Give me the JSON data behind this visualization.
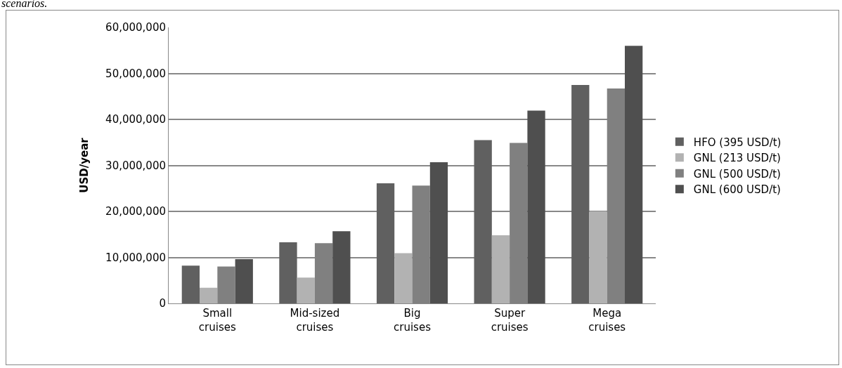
{
  "chart_data": {
    "type": "bar",
    "ylabel": "USD/year",
    "annotations": [
      "scenarios."
    ],
    "categories": [
      "Small cruises",
      "Mid-sized cruises",
      "Big cruises",
      "Super cruises",
      "Mega cruises"
    ],
    "series": [
      {
        "name": "HFO (395 USD/t)",
        "color": "#606060",
        "values": [
          8200000,
          13300000,
          26100000,
          35500000,
          47500000
        ]
      },
      {
        "name": "GNL (213 USD/t)",
        "color": "#b2b2b2",
        "values": [
          3400000,
          5600000,
          10900000,
          14800000,
          20000000
        ]
      },
      {
        "name": "GNL (500 USD/t)",
        "color": "#808080",
        "values": [
          8000000,
          13100000,
          25600000,
          34900000,
          46700000
        ]
      },
      {
        "name": "GNL (600 USD/t)",
        "color": "#4f4f4f",
        "values": [
          9600000,
          15700000,
          30700000,
          41900000,
          56000000
        ]
      }
    ],
    "ylim": [
      0,
      60000000
    ],
    "yticks": [
      {
        "value": 0,
        "label": "0"
      },
      {
        "value": 10000000,
        "label": "10,000,000"
      },
      {
        "value": 20000000,
        "label": "20,000,000"
      },
      {
        "value": 30000000,
        "label": "30,000,000"
      },
      {
        "value": 40000000,
        "label": "40,000,000"
      },
      {
        "value": 50000000,
        "label": "50,000,000"
      },
      {
        "value": 60000000,
        "label": "60,000,000"
      }
    ],
    "grid": "y",
    "legend": "right"
  }
}
